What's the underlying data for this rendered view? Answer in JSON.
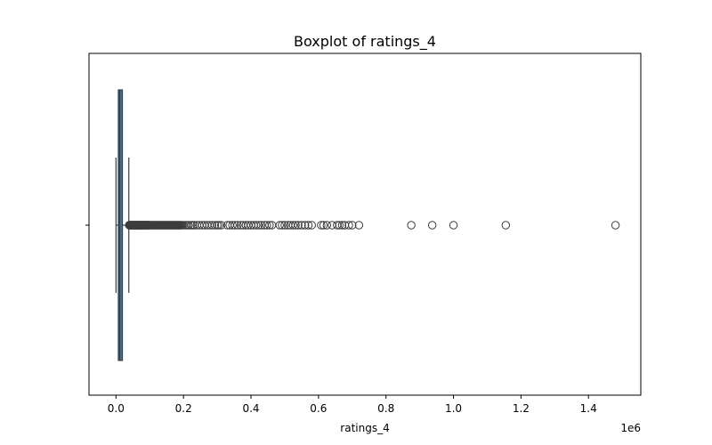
{
  "chart_data": {
    "type": "boxplot",
    "title": "Boxplot of ratings_4",
    "xlabel": "ratings_4",
    "ylabel": "",
    "orientation": "horizontal",
    "x_offset_label": "1e6",
    "xlim": [
      -80000,
      1555000
    ],
    "xticks": [
      {
        "value": 0,
        "label": "0.0"
      },
      {
        "value": 200000,
        "label": "0.2"
      },
      {
        "value": 400000,
        "label": "0.4"
      },
      {
        "value": 600000,
        "label": "0.6"
      },
      {
        "value": 800000,
        "label": "0.8"
      },
      {
        "value": 1000000,
        "label": "1.0"
      },
      {
        "value": 1200000,
        "label": "1.2"
      },
      {
        "value": 1400000,
        "label": "1.4"
      }
    ],
    "box": {
      "whisker_low": 0,
      "q1": 7000,
      "median": 11000,
      "q3": 19000,
      "whisker_high": 38000
    },
    "outliers": [
      39000,
      40000,
      41000,
      42000,
      43000,
      44000,
      45000,
      46000,
      47000,
      48000,
      49000,
      50000,
      51000,
      52000,
      53000,
      54000,
      55000,
      56000,
      57000,
      58000,
      59000,
      60000,
      61000,
      62000,
      63000,
      64000,
      65000,
      66000,
      67000,
      68000,
      69000,
      70000,
      71000,
      72000,
      73000,
      74000,
      75000,
      76000,
      77000,
      78000,
      79000,
      80000,
      81000,
      82000,
      83000,
      84000,
      85000,
      86000,
      87000,
      88000,
      89000,
      90000,
      91000,
      92000,
      93000,
      94000,
      95000,
      96000,
      97000,
      98000,
      99000,
      100000,
      102000,
      104000,
      106000,
      108000,
      110000,
      112000,
      114000,
      116000,
      118000,
      120000,
      122000,
      124000,
      126000,
      128000,
      130000,
      132000,
      134000,
      136000,
      138000,
      140000,
      142000,
      144000,
      146000,
      148000,
      150000,
      152000,
      154000,
      156000,
      158000,
      160000,
      162000,
      164000,
      166000,
      168000,
      170000,
      172000,
      174000,
      176000,
      178000,
      180000,
      182000,
      184000,
      186000,
      188000,
      190000,
      193000,
      196000,
      199000,
      205000,
      210000,
      215000,
      222000,
      227000,
      232000,
      240000,
      247000,
      255000,
      262000,
      270000,
      277000,
      285000,
      293000,
      300000,
      305000,
      312000,
      330000,
      337000,
      345000,
      352000,
      360000,
      370000,
      377000,
      385000,
      392000,
      400000,
      408000,
      415000,
      422000,
      430000,
      440000,
      447000,
      455000,
      462000,
      485000,
      492000,
      500000,
      510000,
      517000,
      525000,
      532000,
      540000,
      550000,
      560000,
      570000,
      580000,
      608000,
      615000,
      625000,
      640000,
      655000,
      662000,
      670000,
      678000,
      690000,
      700000,
      720000,
      875000,
      937000,
      1000000,
      1155000,
      1480000
    ],
    "colors": {
      "box_fill": "#3a75a8",
      "box_edge": "#3d3d3d",
      "whisker": "#3d3d3d",
      "median": "#3d3d3d",
      "outlier_edge": "#3d3d3d",
      "axis": "#000000"
    }
  }
}
